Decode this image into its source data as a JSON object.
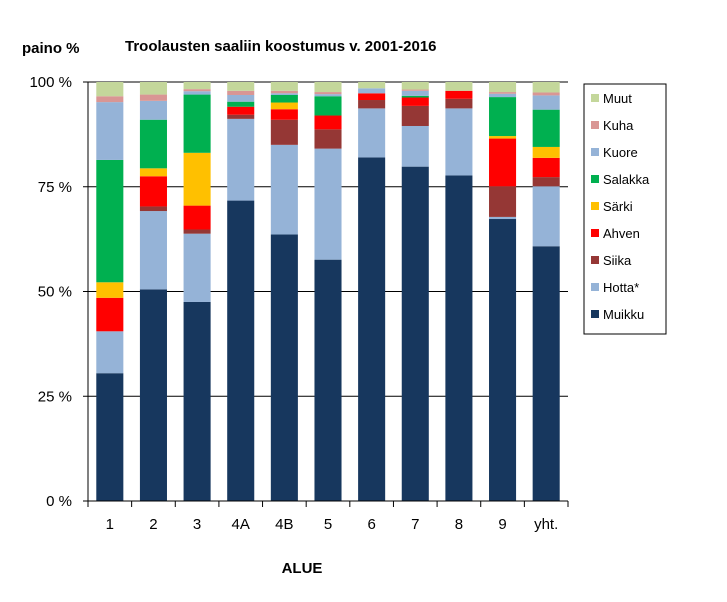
{
  "chart_data": {
    "type": "bar",
    "stacked": true,
    "title": "Troolausten saaliin koostumus v. 2001-2016",
    "ylabel": "paino %",
    "xlabel": "ALUE",
    "ylim": [
      0,
      100
    ],
    "yticks": [
      {
        "value": 0,
        "label": "0 %"
      },
      {
        "value": 25,
        "label": "25 %"
      },
      {
        "value": 50,
        "label": "50 %"
      },
      {
        "value": 75,
        "label": "75 %"
      },
      {
        "value": 100,
        "label": "100 %"
      }
    ],
    "grid": true,
    "legend_position": "right",
    "categories": [
      "1",
      "2",
      "3",
      "4A",
      "4B",
      "5",
      "6",
      "7",
      "8",
      "9",
      "yht."
    ],
    "series": [
      {
        "name": "Muikku",
        "color": "#17375E",
        "values": [
          30.5,
          50.5,
          47.5,
          71.7,
          63.6,
          57.6,
          82.0,
          79.8,
          77.7,
          67.3,
          60.8
        ]
      },
      {
        "name": "Hotta*",
        "color": "#95B3D7",
        "values": [
          10.0,
          18.7,
          16.3,
          19.5,
          21.4,
          26.5,
          11.7,
          9.7,
          16.0,
          0.5,
          14.3
        ]
      },
      {
        "name": "Siika",
        "color": "#953735",
        "values": [
          0.0,
          1.1,
          1.0,
          1.0,
          6.0,
          4.6,
          2.0,
          4.8,
          2.3,
          7.3,
          2.2
        ]
      },
      {
        "name": "Ahven",
        "color": "#FF0000",
        "values": [
          8.0,
          7.2,
          5.7,
          1.9,
          2.5,
          3.3,
          1.6,
          2.0,
          1.9,
          11.4,
          4.6
        ]
      },
      {
        "name": "Särki",
        "color": "#FFC000",
        "values": [
          3.7,
          1.9,
          12.6,
          0.0,
          1.6,
          0.0,
          0.0,
          0.0,
          0.0,
          0.6,
          2.6
        ]
      },
      {
        "name": "Salakka",
        "color": "#00B050",
        "values": [
          29.2,
          11.6,
          13.9,
          1.2,
          1.8,
          4.6,
          0.0,
          0.4,
          0.0,
          9.3,
          8.9
        ]
      },
      {
        "name": "Kuore",
        "color": "#95B3D7",
        "values": [
          13.8,
          4.5,
          0.8,
          1.6,
          0.4,
          0.5,
          1.2,
          1.2,
          0.0,
          0.8,
          3.4
        ]
      },
      {
        "name": "Kuha",
        "color": "#D99694",
        "values": [
          1.4,
          1.5,
          0.5,
          1.0,
          0.6,
          0.5,
          0.0,
          0.3,
          0.0,
          0.4,
          0.7
        ]
      },
      {
        "name": "Muut",
        "color": "#C4D79B",
        "values": [
          3.4,
          3.0,
          1.7,
          2.1,
          2.1,
          2.4,
          1.5,
          1.8,
          2.1,
          2.4,
          2.5
        ]
      }
    ],
    "legend_order": [
      "Muut",
      "Kuha",
      "Kuore",
      "Salakka",
      "Särki",
      "Ahven",
      "Siika",
      "Hotta*",
      "Muikku"
    ]
  }
}
